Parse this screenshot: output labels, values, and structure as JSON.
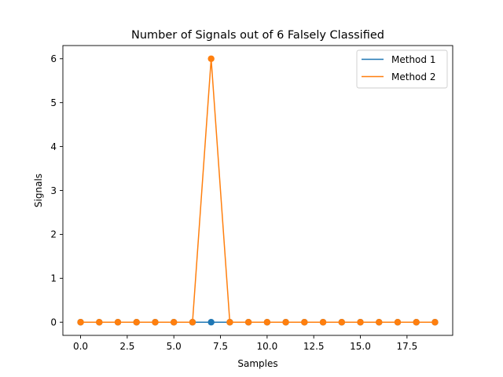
{
  "chart_data": {
    "type": "line",
    "title": "Number of Signals out of 6 Falsely Classified",
    "xlabel": "Samples",
    "ylabel": "Signals",
    "x": [
      0,
      1,
      2,
      3,
      4,
      5,
      6,
      7,
      8,
      9,
      10,
      11,
      12,
      13,
      14,
      15,
      16,
      17,
      18,
      19
    ],
    "series": [
      {
        "name": "Method 1",
        "color": "#1f77b4",
        "marker": "circle",
        "values": [
          0,
          0,
          0,
          0,
          0,
          0,
          0,
          0,
          0,
          0,
          0,
          0,
          0,
          0,
          0,
          0,
          0,
          0,
          0,
          0
        ]
      },
      {
        "name": "Method 2",
        "color": "#ff7f0e",
        "marker": "circle",
        "values": [
          0,
          0,
          0,
          0,
          0,
          0,
          0,
          6,
          0,
          0,
          0,
          0,
          0,
          0,
          0,
          0,
          0,
          0,
          0,
          0
        ]
      }
    ],
    "xlim": [
      -0.95,
      19.95
    ],
    "ylim": [
      -0.3,
      6.3
    ],
    "xticks": [
      0.0,
      2.5,
      5.0,
      7.5,
      10.0,
      12.5,
      15.0,
      17.5
    ],
    "xtick_labels": [
      "0.0",
      "2.5",
      "5.0",
      "7.5",
      "10.0",
      "12.5",
      "15.0",
      "17.5"
    ],
    "yticks": [
      0,
      1,
      2,
      3,
      4,
      5,
      6
    ],
    "ytick_labels": [
      "0",
      "1",
      "2",
      "3",
      "4",
      "5",
      "6"
    ],
    "grid": false,
    "legend_position": "top-right"
  }
}
